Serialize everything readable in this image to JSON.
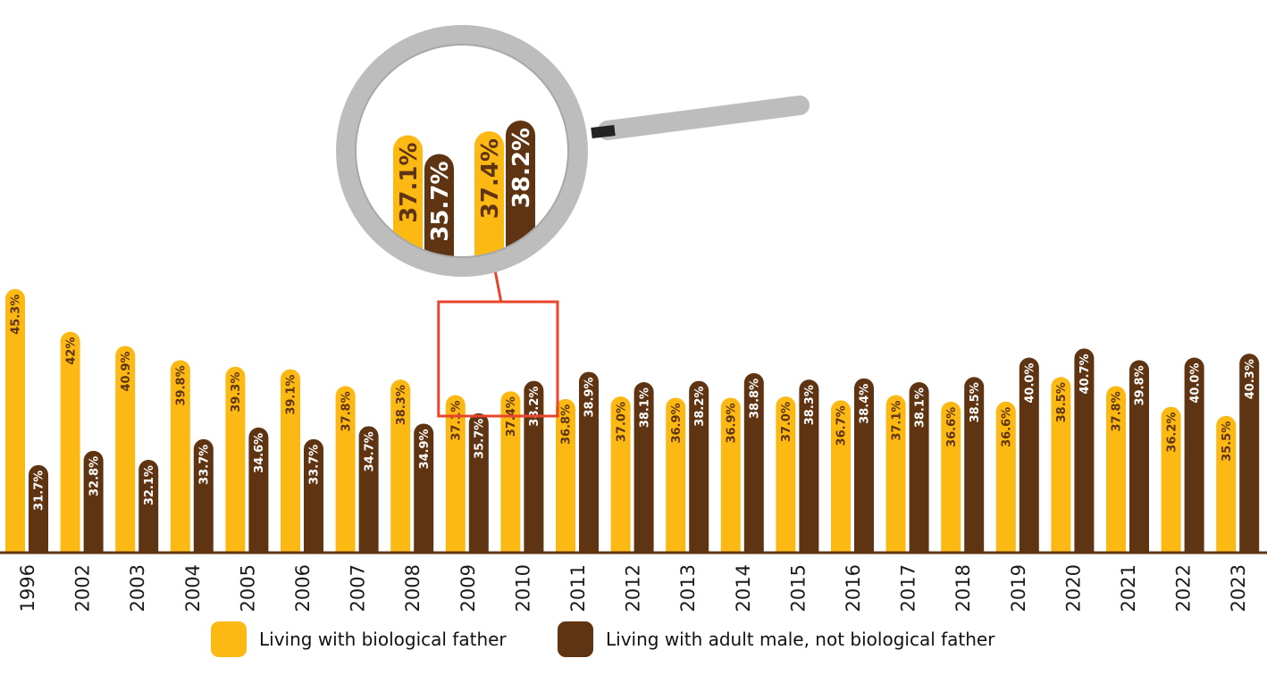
{
  "colors": {
    "series_a": "#FDB913",
    "series_b": "#5E3413",
    "axis": "#5E3413",
    "highlight": "#E8452C",
    "lens": "#BDBDBD"
  },
  "chart_data": {
    "type": "bar",
    "title": "",
    "xlabel": "",
    "ylabel": "",
    "ylim": [
      25,
      46
    ],
    "grid": false,
    "legend_position": "bottom",
    "categories": [
      "1996",
      "2002",
      "2003",
      "2004",
      "2005",
      "2006",
      "2007",
      "2008",
      "2009",
      "2010",
      "2011",
      "2012",
      "2013",
      "2014",
      "2015",
      "2016",
      "2017",
      "2018",
      "2019",
      "2020",
      "2021",
      "2022",
      "2023"
    ],
    "series": [
      {
        "name": "Living with biological father",
        "values": [
          45.3,
          42,
          40.9,
          39.8,
          39.3,
          39.1,
          37.8,
          38.3,
          37.1,
          37.4,
          36.8,
          37.0,
          36.9,
          36.9,
          37.0,
          36.7,
          37.1,
          36.6,
          36.6,
          38.5,
          37.8,
          36.2,
          35.5
        ],
        "labels": [
          "45.3%",
          "42%",
          "40.9%",
          "39.8%",
          "39.3%",
          "39.1%",
          "37.8%",
          "38.3%",
          "37.1%",
          "37.4%",
          "36.8%",
          "37.0%",
          "36.9%",
          "36.9%",
          "37.0%",
          "36.7%",
          "37.1%",
          "36.6%",
          "36.6%",
          "38.5%",
          "37.8%",
          "36.2%",
          "35.5%"
        ]
      },
      {
        "name": "Living with adult male, not biological father",
        "values": [
          31.7,
          32.8,
          32.1,
          33.7,
          34.6,
          33.7,
          34.7,
          34.9,
          35.7,
          38.2,
          38.9,
          38.1,
          38.2,
          38.8,
          38.3,
          38.4,
          38.1,
          38.5,
          40.0,
          40.7,
          39.8,
          40.0,
          40.3
        ],
        "labels": [
          "31.7%",
          "32.8%",
          "32.1%",
          "33.7%",
          "34.6%",
          "33.7%",
          "34.7%",
          "34.9%",
          "35.7%",
          "38.2%",
          "38.9%",
          "38.1%",
          "38.2%",
          "38.8%",
          "38.3%",
          "38.4%",
          "38.1%",
          "38.5%",
          "40.0%",
          "40.7%",
          "39.8%",
          "40.0%",
          "40.3%"
        ]
      }
    ],
    "highlight": {
      "categories": [
        "2009",
        "2010"
      ],
      "zoom_labels": [
        "37.1%",
        "35.7%",
        "37.4%",
        "38.2%"
      ]
    }
  }
}
